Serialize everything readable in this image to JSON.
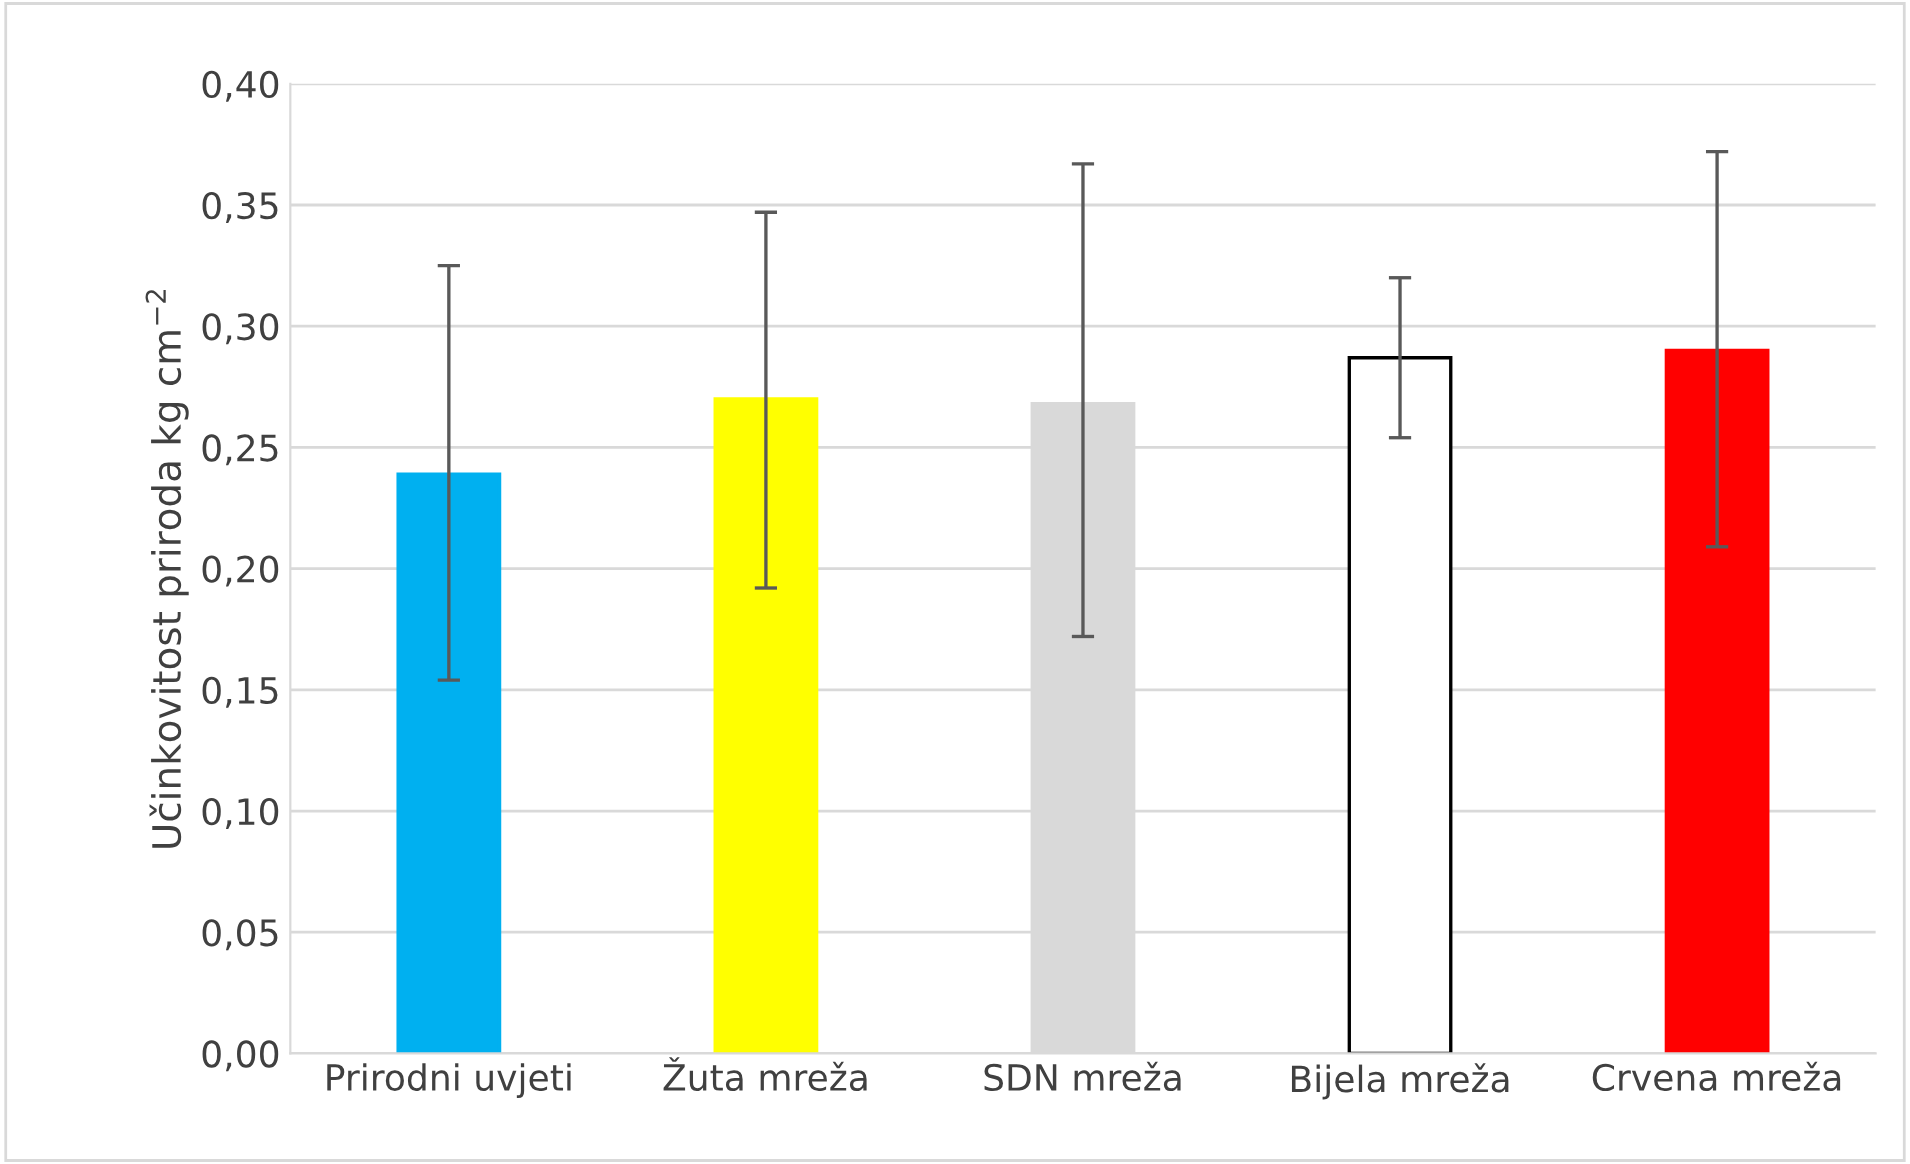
{
  "chart_data": {
    "type": "bar",
    "ylabel": "Učinkovitost priroda kg cm$^{−2}$",
    "categories": [
      "Prirodni uvjeti",
      "Žuta mreža",
      "SDN mreža",
      "Bijela mreža",
      "Crvena mreža"
    ],
    "values": [
      0.239,
      0.27,
      0.268,
      0.287,
      0.29
    ],
    "colors": [
      "#00b0f0",
      "#ffff00",
      "#d9d9d9",
      "#ffffff",
      "#ff0000"
    ],
    "errors": [
      [
        0.154,
        0.325
      ],
      [
        0.192,
        0.347
      ],
      [
        0.172,
        0.367
      ],
      [
        0.254,
        0.32
      ],
      [
        0.209,
        0.372
      ]
    ],
    "ylim": [
      0,
      0.4
    ],
    "yticks": [
      {
        "value": 0,
        "label": "0,00"
      },
      {
        "value": 0.05,
        "label": "0,05"
      },
      {
        "value": 0.1,
        "label": "0,10"
      },
      {
        "value": 0.15,
        "label": "0,15"
      },
      {
        "value": 0.2,
        "label": "0,20"
      },
      {
        "value": 0.25,
        "label": "0,25"
      },
      {
        "value": 0.3,
        "label": "0,30"
      },
      {
        "value": 0.35,
        "label": "0,35"
      },
      {
        "value": 0.4,
        "label": "0,40"
      }
    ],
    "grid": "y"
  }
}
